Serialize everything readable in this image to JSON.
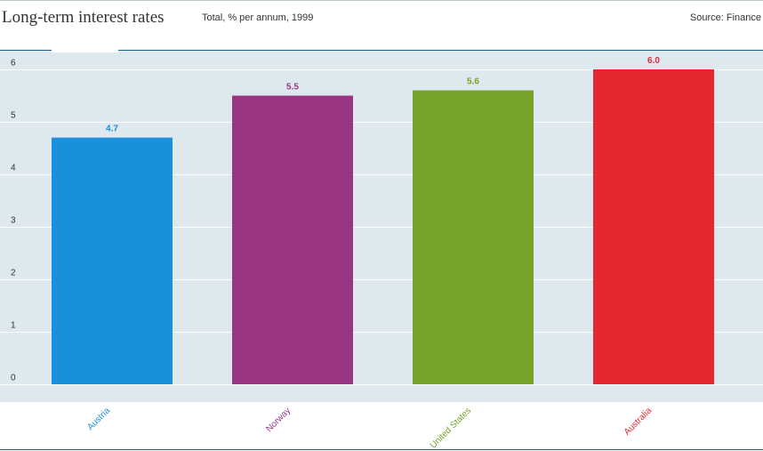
{
  "header": {
    "title": "Long-term interest rates",
    "subtitle": "Total, % per annum, 1999",
    "source": "Source: Finance"
  },
  "colors": {
    "plot_background": "#dde8ef",
    "gridline": "#ffffff",
    "axis_rule": "#1d5f7a",
    "text": "#333333"
  },
  "chart_data": {
    "type": "bar",
    "title": "Long-term interest rates",
    "subtitle": "Total, % per annum, 1999",
    "categories": [
      "Austria",
      "Norway",
      "United States",
      "Australia"
    ],
    "values": [
      4.7,
      5.5,
      5.6,
      6.0
    ],
    "value_labels": [
      "4.7",
      "5.5",
      "5.6",
      "6.0"
    ],
    "bar_colors": [
      "#1a8fdb",
      "#9a3584",
      "#76a22a",
      "#e5282f"
    ],
    "y_ticks": [
      0,
      1,
      2,
      3,
      4,
      5,
      6
    ],
    "ylim": [
      0,
      6.1
    ],
    "xlabel": "",
    "ylabel": "",
    "grid": true,
    "legend": "none"
  }
}
